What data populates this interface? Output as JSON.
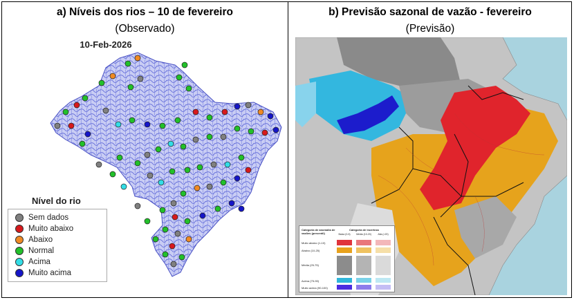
{
  "panel_a": {
    "title": "a)   Níveis dos rios – 10 de fevereiro",
    "subtitle": "(Observado)",
    "map_date": "10-Feb-2026",
    "legend_title": "Nível do rio",
    "legend": [
      {
        "label": "Sem dados",
        "color": "#808080"
      },
      {
        "label": "Muito abaixo",
        "color": "#d7191c"
      },
      {
        "label": "Abaixo",
        "color": "#f08a24"
      },
      {
        "label": "Normal",
        "color": "#22c02a"
      },
      {
        "label": "Acima",
        "color": "#33dde6"
      },
      {
        "label": "Muito acima",
        "color": "#1515c8"
      }
    ]
  },
  "panel_b": {
    "title": "b)   Previsão sazonal de vazão - fevereiro",
    "subtitle": "(Previsão)",
    "legend_header_left": "Categoria de anomalia de vazões (percentil)",
    "legend_header_right": "Categoria de incerteza",
    "uncertainty_cols": [
      "Baixa (0-5)",
      "Média (10-20)",
      "Alta (>20)"
    ],
    "rows": [
      {
        "label": "Muito abaixo (1-10)",
        "colors": [
          "#e0343c",
          "#e9777b",
          "#f3b7b9"
        ]
      },
      {
        "label": "Abaixo (10-25)",
        "colors": [
          "#e8a21c",
          "#efc260",
          "#f6dfa8"
        ]
      },
      {
        "label": "Média (25-75)",
        "colors": [
          "#8c8c8c",
          "#b4b4b4",
          "#dadada"
        ]
      },
      {
        "label": "Acima (75-90)",
        "colors": [
          "#30b6da",
          "#7ad2e8",
          "#bde8f3"
        ]
      },
      {
        "label": "Muito acima (90-100)",
        "colors": [
          "#4a2ce0",
          "#8d7ceb",
          "#c4bdf4"
        ]
      }
    ]
  }
}
